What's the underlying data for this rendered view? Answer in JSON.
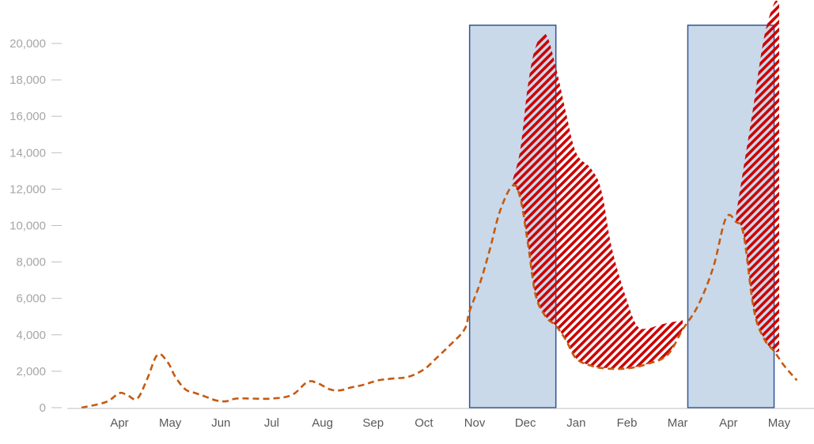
{
  "chart_data": {
    "type": "line",
    "title": "",
    "xlabel": "",
    "ylabel": "",
    "ylim": [
      0,
      21000
    ],
    "yticks": [
      0,
      2000,
      4000,
      6000,
      8000,
      10000,
      12000,
      14000,
      16000,
      18000,
      20000
    ],
    "ytick_labels": [
      "0",
      "2,000",
      "4,000",
      "6,000",
      "8,000",
      "10,000",
      "12,000",
      "14,000",
      "16,000",
      "18,000",
      "20,000"
    ],
    "xlim": [
      -0.75,
      13.0
    ],
    "xticks": [
      {
        "label": "Apr",
        "value": 0
      },
      {
        "label": "May",
        "value": 1
      },
      {
        "label": "Jun",
        "value": 2
      },
      {
        "label": "Jul",
        "value": 3
      },
      {
        "label": "Aug",
        "value": 4
      },
      {
        "label": "Sep",
        "value": 5
      },
      {
        "label": "Oct",
        "value": 6
      },
      {
        "label": "Nov",
        "value": 7
      },
      {
        "label": "Dec",
        "value": 8
      },
      {
        "label": "Jan",
        "value": 9
      },
      {
        "label": "Feb",
        "value": 10
      },
      {
        "label": "Mar",
        "value": 11
      },
      {
        "label": "Apr",
        "value": 12
      },
      {
        "label": "May",
        "value": 13
      }
    ],
    "grid": false,
    "legend": "none",
    "colors": {
      "line": "#c55a11",
      "hatch": "#cc0000",
      "band_fill": "#c9d9ea",
      "band_stroke": "#2f5597",
      "axis": "#bfbfbf"
    },
    "shaded_periods": [
      {
        "start": 6.9,
        "end": 8.6,
        "ymax": 21000
      },
      {
        "start": 11.2,
        "end": 12.9,
        "ymax": 21000
      }
    ],
    "series": [
      {
        "style": "dashed",
        "x": [
          -0.75,
          -0.4,
          -0.2,
          0.0,
          0.15,
          0.35,
          0.55,
          0.75,
          0.95,
          1.1,
          1.3,
          1.5,
          1.7,
          1.9,
          2.1,
          2.3,
          2.6,
          3.0,
          3.4,
          3.7,
          3.9,
          4.15,
          4.35,
          4.55,
          4.8,
          5.1,
          5.4,
          5.7,
          6.0,
          6.2,
          6.5,
          6.8,
          6.9,
          7.1,
          7.3,
          7.5,
          7.75,
          7.9,
          8.05,
          8.2,
          8.4,
          8.6,
          8.8,
          9.0,
          9.3,
          9.6,
          10.0,
          10.4,
          10.8,
          11.1,
          11.4,
          11.7,
          11.95,
          12.15,
          12.3,
          12.5,
          12.7,
          12.9,
          13.1,
          13.35
        ],
        "y": [
          0,
          200,
          400,
          800,
          700,
          500,
          1600,
          2900,
          2500,
          1700,
          1000,
          800,
          600,
          400,
          350,
          500,
          500,
          500,
          700,
          1400,
          1350,
          1000,
          950,
          1100,
          1250,
          1500,
          1600,
          1700,
          2100,
          2600,
          3400,
          4300,
          5300,
          6800,
          8700,
          10800,
          12200,
          11500,
          9000,
          6200,
          5000,
          4500,
          3700,
          2700,
          2300,
          2150,
          2150,
          2400,
          2900,
          4300,
          5600,
          7700,
          10400,
          10200,
          9500,
          5400,
          3800,
          3100,
          2300,
          1500
        ]
      }
    ],
    "hatched_ranges": [
      {
        "x": [
          7.75,
          7.9,
          8.05,
          8.2,
          8.4,
          8.6,
          8.8,
          9.0,
          9.3,
          9.5,
          9.7,
          10.0,
          10.2,
          10.4,
          10.6,
          10.8,
          11.0,
          11.1
        ],
        "upper": [
          12500,
          14200,
          17700,
          19800,
          20500,
          18700,
          16200,
          14000,
          13100,
          11900,
          8800,
          5900,
          4500,
          4350,
          4500,
          4650,
          4750,
          4800
        ],
        "lower": [
          12200,
          11500,
          9000,
          6200,
          5000,
          4500,
          3700,
          2700,
          2300,
          2200,
          2150,
          2150,
          2250,
          2400,
          2600,
          2900,
          3800,
          4300
        ]
      },
      {
        "x": [
          12.15,
          12.3,
          12.5,
          12.7,
          12.9,
          13.0
        ],
        "upper": [
          10600,
          13200,
          16700,
          20300,
          22200,
          22200
        ],
        "lower": [
          10200,
          9500,
          5400,
          3800,
          3100,
          3100
        ]
      }
    ]
  }
}
